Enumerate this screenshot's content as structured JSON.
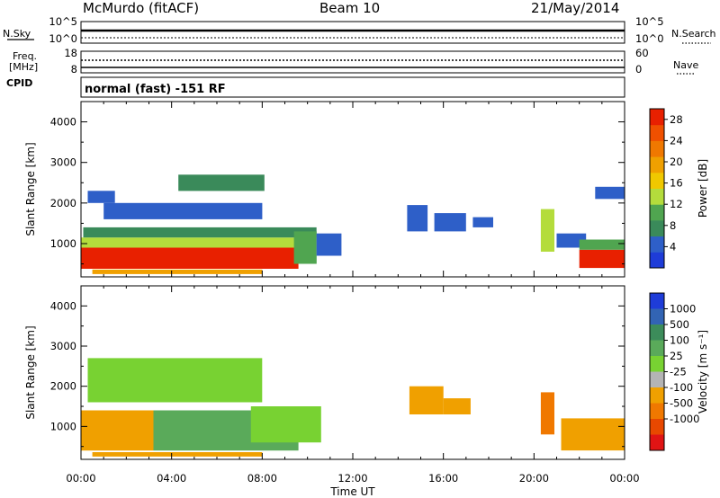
{
  "header": {
    "station": "McMurdo (fitACF)",
    "beam": "Beam 10",
    "date": "21/May/2014"
  },
  "noise_panel": {
    "left_label": "N.Sky",
    "right_label": "N.Search",
    "left_ticks": [
      "10^5",
      "10^0"
    ],
    "right_ticks": [
      "10^5",
      "10^0"
    ]
  },
  "freq_panel": {
    "left_label_1": "Freq.",
    "left_label_2": "[MHz]",
    "right_label": "Nave",
    "left_ticks": [
      "18",
      "8"
    ],
    "right_ticks": [
      "60",
      "0"
    ]
  },
  "cpid": {
    "label": "CPID",
    "mode_text": "normal (fast) -151 RF"
  },
  "colors": {
    "power": [
      "#1e3cd8",
      "#2e5fc8",
      "#3a8a5a",
      "#50a550",
      "#b4dc3c",
      "#f0c800",
      "#f0a000",
      "#f07800",
      "#f05000",
      "#e82000"
    ],
    "velocity": [
      "#1e3cd8",
      "#3264b4",
      "#3c8c5a",
      "#5aaa5a",
      "#78d232",
      "#b4b4b4",
      "#f0a000",
      "#f07800",
      "#e84800",
      "#e01414"
    ]
  },
  "chart_data": [
    {
      "type": "heatmap",
      "title": "Power",
      "xlabel": "Time UT",
      "ylabel": "Slant Range [km]",
      "xlim": [
        "00:00",
        "24:00"
      ],
      "ylim": [
        180,
        4500
      ],
      "x_ticks": [
        "00:00",
        "04:00",
        "08:00",
        "12:00",
        "16:00",
        "20:00",
        "00:00"
      ],
      "y_ticks": [
        1000,
        2000,
        3000,
        4000
      ],
      "colorbar": {
        "label": "Power [dB]",
        "ticks": [
          "4",
          "8",
          "12",
          "16",
          "20",
          "24",
          "28"
        ],
        "range": [
          0,
          30
        ]
      },
      "regions": [
        {
          "t0": 0.0,
          "t1": 9.6,
          "r0": 380,
          "r1": 900,
          "level": 28
        },
        {
          "t0": 0.0,
          "t1": 9.8,
          "r0": 900,
          "r1": 1150,
          "level": 14
        },
        {
          "t0": 0.1,
          "t1": 10.4,
          "r0": 1150,
          "r1": 1400,
          "level": 8
        },
        {
          "t0": 9.4,
          "t1": 10.4,
          "r0": 500,
          "r1": 1300,
          "level": 10
        },
        {
          "t0": 10.4,
          "t1": 11.5,
          "r0": 700,
          "r1": 1250,
          "level": 4
        },
        {
          "t0": 14.4,
          "t1": 15.3,
          "r0": 1300,
          "r1": 1950,
          "level": 4
        },
        {
          "t0": 15.6,
          "t1": 17.0,
          "r0": 1300,
          "r1": 1750,
          "level": 4
        },
        {
          "t0": 17.3,
          "t1": 18.2,
          "r0": 1400,
          "r1": 1650,
          "level": 4
        },
        {
          "t0": 20.3,
          "t1": 20.9,
          "r0": 800,
          "r1": 1850,
          "level": 14
        },
        {
          "t0": 21.0,
          "t1": 22.3,
          "r0": 900,
          "r1": 1250,
          "level": 4
        },
        {
          "t0": 22.0,
          "t1": 24.0,
          "r0": 400,
          "r1": 850,
          "level": 28
        },
        {
          "t0": 22.0,
          "t1": 24.0,
          "r0": 850,
          "r1": 1100,
          "level": 10
        },
        {
          "t0": 22.7,
          "t1": 24.0,
          "r0": 2100,
          "r1": 2400,
          "level": 4
        },
        {
          "t0": 0.3,
          "t1": 1.5,
          "r0": 2000,
          "r1": 2300,
          "level": 4
        },
        {
          "t0": 4.3,
          "t1": 8.1,
          "r0": 2300,
          "r1": 2700,
          "level": 8
        },
        {
          "t0": 1.0,
          "t1": 8.0,
          "r0": 1600,
          "r1": 2000,
          "level": 4
        },
        {
          "t0": 0.5,
          "t1": 8.0,
          "r0": 250,
          "r1": 360,
          "level": 20
        }
      ]
    },
    {
      "type": "heatmap",
      "title": "Velocity",
      "xlabel": "Time UT",
      "ylabel": "Slant Range [km]",
      "xlim": [
        "00:00",
        "24:00"
      ],
      "ylim": [
        180,
        4500
      ],
      "x_ticks": [
        "00:00",
        "04:00",
        "08:00",
        "12:00",
        "16:00",
        "20:00",
        "00:00"
      ],
      "y_ticks": [
        1000,
        2000,
        3000,
        4000
      ],
      "colorbar": {
        "label": "Velocity [m s^-1]",
        "ticks": [
          "1000",
          "500",
          "100",
          "25",
          "-25",
          "-100",
          "-500",
          "-1000"
        ]
      },
      "regions": [
        {
          "t0": 0.0,
          "t1": 3.2,
          "r0": 400,
          "r1": 1400,
          "level": "-100"
        },
        {
          "t0": 3.2,
          "t1": 9.6,
          "r0": 400,
          "r1": 1400,
          "level": "100"
        },
        {
          "t0": 7.5,
          "t1": 10.6,
          "r0": 600,
          "r1": 1500,
          "level": "25"
        },
        {
          "t0": 14.5,
          "t1": 16.0,
          "r0": 1300,
          "r1": 2000,
          "level": "-100"
        },
        {
          "t0": 16.0,
          "t1": 17.2,
          "r0": 1300,
          "r1": 1700,
          "level": "-100"
        },
        {
          "t0": 20.3,
          "t1": 20.9,
          "r0": 800,
          "r1": 1850,
          "level": "-500"
        },
        {
          "t0": 21.2,
          "t1": 24.0,
          "r0": 400,
          "r1": 1200,
          "level": "-100"
        },
        {
          "t0": 0.3,
          "t1": 8.0,
          "r0": 1600,
          "r1": 2700,
          "level": "25"
        },
        {
          "t0": 0.5,
          "t1": 8.0,
          "r0": 250,
          "r1": 360,
          "level": "-100"
        }
      ]
    }
  ]
}
